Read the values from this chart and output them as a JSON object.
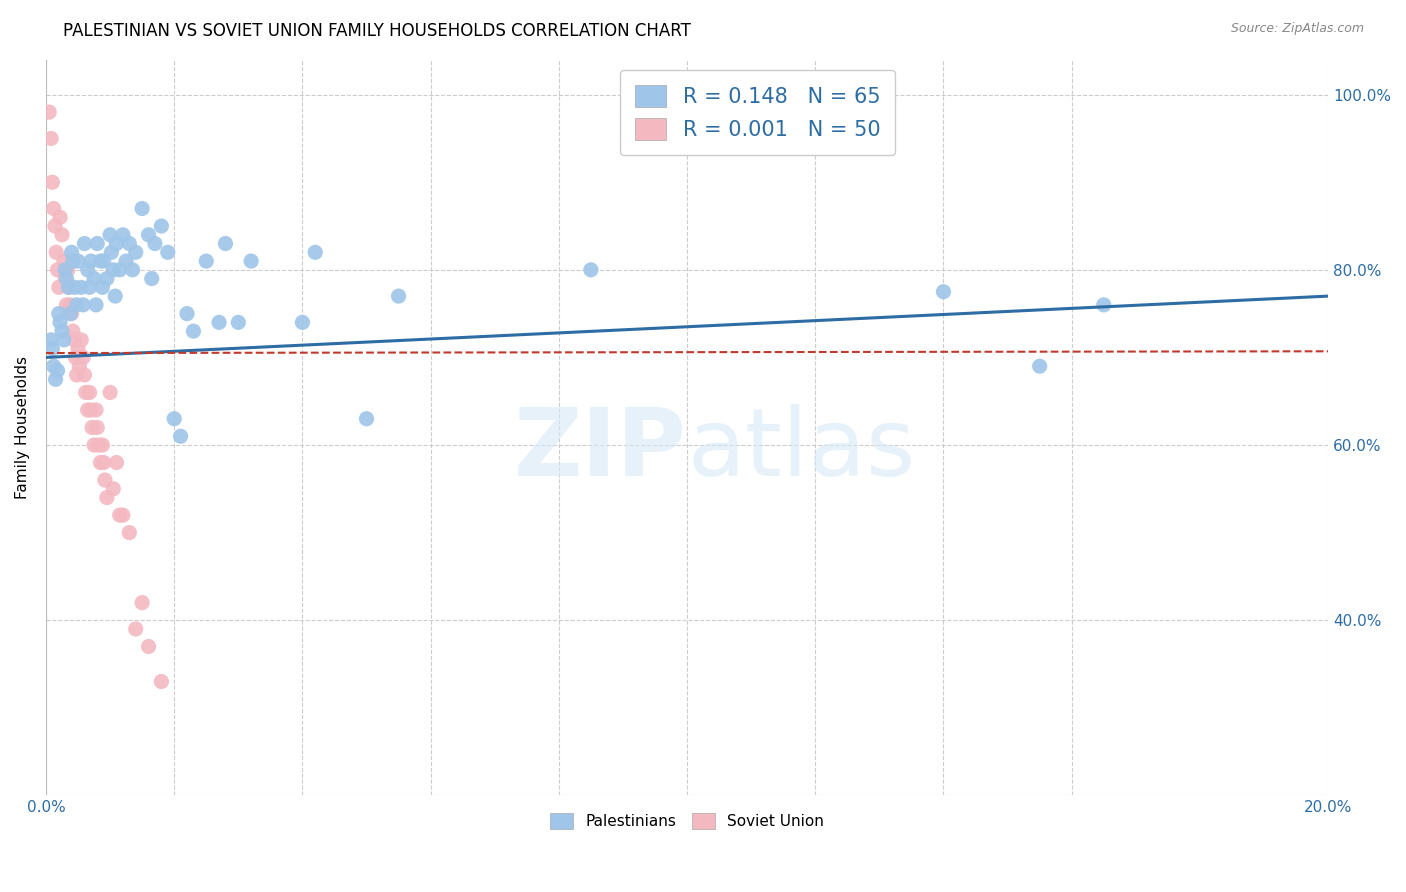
{
  "title": "PALESTINIAN VS SOVIET UNION FAMILY HOUSEHOLDS CORRELATION CHART",
  "source": "Source: ZipAtlas.com",
  "ylabel": "Family Households",
  "xlim": [
    0.0,
    0.2
  ],
  "ylim": [
    0.2,
    1.04
  ],
  "ytick_labels": [
    "40.0%",
    "60.0%",
    "80.0%",
    "100.0%"
  ],
  "ytick_values": [
    0.4,
    0.6,
    0.8,
    1.0
  ],
  "xtick_labels": [
    "0.0%",
    "",
    "",
    "",
    "",
    "",
    "",
    "",
    "",
    "20.0%"
  ],
  "xtick_values": [
    0.0,
    0.02,
    0.04,
    0.06,
    0.08,
    0.1,
    0.12,
    0.14,
    0.16,
    0.2
  ],
  "blue_color": "#9fc5e8",
  "pink_color": "#f4b8c1",
  "blue_line_color": "#2e6da4",
  "pink_line_color": "#c0392b",
  "legend_R_blue": "0.148",
  "legend_N_blue": "65",
  "legend_R_pink": "0.001",
  "legend_N_pink": "50",
  "legend_color": "#2e6da4",
  "watermark_zip": "ZIP",
  "watermark_atlas": "atlas",
  "grid_color": "#cccccc",
  "axis_color": "#2e6da4",
  "title_fontsize": 12,
  "label_fontsize": 11,
  "blue_scatter_x": [
    0.0008,
    0.001,
    0.0012,
    0.0015,
    0.0018,
    0.002,
    0.0022,
    0.0025,
    0.0028,
    0.003,
    0.0032,
    0.0035,
    0.0038,
    0.004,
    0.0042,
    0.0045,
    0.0048,
    0.005,
    0.0055,
    0.0058,
    0.006,
    0.0065,
    0.0068,
    0.007,
    0.0075,
    0.0078,
    0.008,
    0.0085,
    0.0088,
    0.009,
    0.0095,
    0.01,
    0.0102,
    0.0105,
    0.0108,
    0.011,
    0.0115,
    0.012,
    0.0125,
    0.013,
    0.0135,
    0.014,
    0.015,
    0.016,
    0.0165,
    0.017,
    0.018,
    0.019,
    0.02,
    0.021,
    0.022,
    0.023,
    0.025,
    0.027,
    0.028,
    0.03,
    0.032,
    0.04,
    0.042,
    0.05,
    0.055,
    0.085,
    0.14,
    0.155,
    0.165
  ],
  "blue_scatter_y": [
    0.72,
    0.71,
    0.69,
    0.675,
    0.685,
    0.75,
    0.74,
    0.73,
    0.72,
    0.8,
    0.79,
    0.78,
    0.75,
    0.82,
    0.81,
    0.78,
    0.76,
    0.81,
    0.78,
    0.76,
    0.83,
    0.8,
    0.78,
    0.81,
    0.79,
    0.76,
    0.83,
    0.81,
    0.78,
    0.81,
    0.79,
    0.84,
    0.82,
    0.8,
    0.77,
    0.83,
    0.8,
    0.84,
    0.81,
    0.83,
    0.8,
    0.82,
    0.87,
    0.84,
    0.79,
    0.83,
    0.85,
    0.82,
    0.63,
    0.61,
    0.75,
    0.73,
    0.81,
    0.74,
    0.83,
    0.74,
    0.81,
    0.74,
    0.82,
    0.63,
    0.77,
    0.8,
    0.775,
    0.69,
    0.76
  ],
  "pink_scatter_x": [
    0.0005,
    0.0008,
    0.001,
    0.0012,
    0.0014,
    0.0016,
    0.0018,
    0.002,
    0.0022,
    0.0025,
    0.0028,
    0.003,
    0.0032,
    0.0034,
    0.0036,
    0.0038,
    0.004,
    0.0042,
    0.0044,
    0.0046,
    0.0048,
    0.005,
    0.0052,
    0.0055,
    0.0058,
    0.006,
    0.0062,
    0.0065,
    0.0068,
    0.007,
    0.0072,
    0.0075,
    0.0078,
    0.008,
    0.0082,
    0.0085,
    0.0088,
    0.009,
    0.0092,
    0.0095,
    0.01,
    0.0105,
    0.011,
    0.0115,
    0.012,
    0.013,
    0.014,
    0.015,
    0.016,
    0.018
  ],
  "pink_scatter_y": [
    0.98,
    0.95,
    0.9,
    0.87,
    0.85,
    0.82,
    0.8,
    0.78,
    0.86,
    0.84,
    0.81,
    0.79,
    0.76,
    0.8,
    0.78,
    0.76,
    0.75,
    0.73,
    0.72,
    0.7,
    0.68,
    0.71,
    0.69,
    0.72,
    0.7,
    0.68,
    0.66,
    0.64,
    0.66,
    0.64,
    0.62,
    0.6,
    0.64,
    0.62,
    0.6,
    0.58,
    0.6,
    0.58,
    0.56,
    0.54,
    0.66,
    0.55,
    0.58,
    0.52,
    0.52,
    0.5,
    0.39,
    0.42,
    0.37,
    0.33
  ],
  "blue_trend_x": [
    0.0,
    0.2
  ],
  "blue_trend_y": [
    0.7,
    0.77
  ],
  "pink_trend_x": [
    0.0,
    0.2
  ],
  "pink_trend_y": [
    0.705,
    0.707
  ]
}
